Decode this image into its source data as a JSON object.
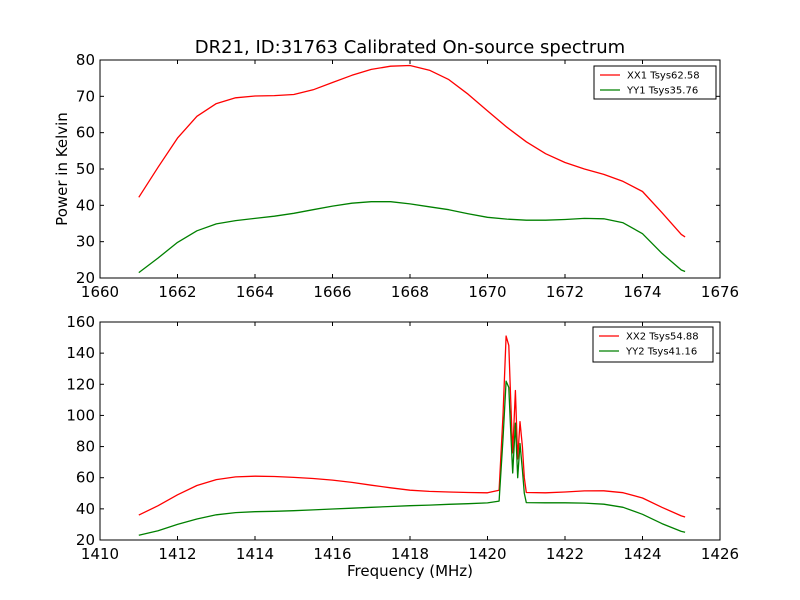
{
  "figure": {
    "title": "DR21, ID:31763 Calibrated On-source spectrum"
  },
  "chart_data": [
    {
      "type": "line",
      "title": "DR21, ID:31763 Calibrated On-source spectrum",
      "xlabel": "",
      "ylabel": "Power in Kelvin",
      "xlim": [
        1660,
        1676
      ],
      "ylim": [
        20,
        80
      ],
      "x_ticks": [
        "1660",
        "1662",
        "1664",
        "1666",
        "1668",
        "1670",
        "1672",
        "1674",
        "1676"
      ],
      "y_ticks": [
        "20",
        "30",
        "40",
        "50",
        "60",
        "70",
        "80"
      ],
      "grid": false,
      "legend_position": "top-right",
      "series": [
        {
          "name": "XX1 Tsys62.58",
          "color": "#ff0000",
          "points": [
            [
              1661.0,
              42.2
            ],
            [
              1661.5,
              50.5
            ],
            [
              1662.0,
              58.5
            ],
            [
              1662.5,
              64.5
            ],
            [
              1663.0,
              68.0
            ],
            [
              1663.5,
              69.6
            ],
            [
              1664.0,
              70.1
            ],
            [
              1664.5,
              70.2
            ],
            [
              1665.0,
              70.5
            ],
            [
              1665.5,
              71.8
            ],
            [
              1666.0,
              73.8
            ],
            [
              1666.5,
              75.8
            ],
            [
              1667.0,
              77.4
            ],
            [
              1667.5,
              78.3
            ],
            [
              1668.0,
              78.5
            ],
            [
              1668.5,
              77.2
            ],
            [
              1669.0,
              74.6
            ],
            [
              1669.5,
              70.6
            ],
            [
              1670.0,
              66.0
            ],
            [
              1670.5,
              61.5
            ],
            [
              1671.0,
              57.5
            ],
            [
              1671.5,
              54.2
            ],
            [
              1672.0,
              51.8
            ],
            [
              1672.5,
              50.0
            ],
            [
              1673.0,
              48.5
            ],
            [
              1673.5,
              46.6
            ],
            [
              1674.0,
              43.8
            ],
            [
              1674.5,
              38.0
            ],
            [
              1675.0,
              32.0
            ],
            [
              1675.1,
              31.3
            ]
          ]
        },
        {
          "name": "YY1 Tsys35.76",
          "color": "#008000",
          "points": [
            [
              1661.0,
              21.5
            ],
            [
              1661.5,
              25.5
            ],
            [
              1662.0,
              29.8
            ],
            [
              1662.5,
              33.0
            ],
            [
              1663.0,
              34.9
            ],
            [
              1663.5,
              35.8
            ],
            [
              1664.0,
              36.4
            ],
            [
              1664.5,
              37.0
            ],
            [
              1665.0,
              37.8
            ],
            [
              1665.5,
              38.8
            ],
            [
              1666.0,
              39.8
            ],
            [
              1666.5,
              40.6
            ],
            [
              1667.0,
              41.0
            ],
            [
              1667.5,
              41.0
            ],
            [
              1668.0,
              40.4
            ],
            [
              1668.5,
              39.6
            ],
            [
              1669.0,
              38.8
            ],
            [
              1669.5,
              37.7
            ],
            [
              1670.0,
              36.7
            ],
            [
              1670.5,
              36.2
            ],
            [
              1671.0,
              35.9
            ],
            [
              1671.5,
              35.9
            ],
            [
              1672.0,
              36.1
            ],
            [
              1672.5,
              36.4
            ],
            [
              1673.0,
              36.3
            ],
            [
              1673.5,
              35.2
            ],
            [
              1674.0,
              32.2
            ],
            [
              1674.5,
              26.8
            ],
            [
              1675.0,
              22.2
            ],
            [
              1675.1,
              21.8
            ]
          ]
        }
      ]
    },
    {
      "type": "line",
      "title": "",
      "xlabel": "Frequency (MHz)",
      "ylabel": "",
      "xlim": [
        1410,
        1426
      ],
      "ylim": [
        20,
        160
      ],
      "x_ticks": [
        "1410",
        "1412",
        "1414",
        "1416",
        "1418",
        "1420",
        "1422",
        "1424",
        "1426"
      ],
      "y_ticks": [
        "20",
        "40",
        "60",
        "80",
        "100",
        "120",
        "140",
        "160"
      ],
      "grid": false,
      "legend_position": "top-right",
      "series": [
        {
          "name": "XX2 Tsys54.88",
          "color": "#ff0000",
          "points": [
            [
              1411.0,
              36.0
            ],
            [
              1411.5,
              42.0
            ],
            [
              1412.0,
              49.0
            ],
            [
              1412.5,
              55.0
            ],
            [
              1413.0,
              58.8
            ],
            [
              1413.5,
              60.5
            ],
            [
              1414.0,
              61.0
            ],
            [
              1414.5,
              60.8
            ],
            [
              1415.0,
              60.2
            ],
            [
              1415.5,
              59.5
            ],
            [
              1416.0,
              58.5
            ],
            [
              1416.5,
              57.0
            ],
            [
              1417.0,
              55.2
            ],
            [
              1417.5,
              53.5
            ],
            [
              1418.0,
              52.0
            ],
            [
              1418.5,
              51.2
            ],
            [
              1419.0,
              50.8
            ],
            [
              1419.5,
              50.5
            ],
            [
              1420.0,
              50.3
            ],
            [
              1420.3,
              52.0
            ],
            [
              1420.4,
              100.0
            ],
            [
              1420.48,
              151.0
            ],
            [
              1420.55,
              145.0
            ],
            [
              1420.6,
              110.0
            ],
            [
              1420.65,
              76.0
            ],
            [
              1420.72,
              116.0
            ],
            [
              1420.78,
              72.0
            ],
            [
              1420.84,
              96.0
            ],
            [
              1420.9,
              80.0
            ],
            [
              1420.95,
              60.0
            ],
            [
              1421.0,
              50.5
            ],
            [
              1421.5,
              50.3
            ],
            [
              1422.0,
              50.8
            ],
            [
              1422.5,
              51.5
            ],
            [
              1423.0,
              51.6
            ],
            [
              1423.5,
              50.4
            ],
            [
              1424.0,
              47.0
            ],
            [
              1424.5,
              41.0
            ],
            [
              1425.0,
              35.5
            ],
            [
              1425.1,
              34.8
            ]
          ]
        },
        {
          "name": "YY2 Tsys41.16",
          "color": "#008000",
          "points": [
            [
              1411.0,
              23.0
            ],
            [
              1411.5,
              26.0
            ],
            [
              1412.0,
              30.0
            ],
            [
              1412.5,
              33.5
            ],
            [
              1413.0,
              36.2
            ],
            [
              1413.5,
              37.6
            ],
            [
              1414.0,
              38.2
            ],
            [
              1414.5,
              38.4
            ],
            [
              1415.0,
              38.8
            ],
            [
              1415.5,
              39.3
            ],
            [
              1416.0,
              39.9
            ],
            [
              1416.5,
              40.4
            ],
            [
              1417.0,
              41.0
            ],
            [
              1417.5,
              41.5
            ],
            [
              1418.0,
              42.0
            ],
            [
              1418.5,
              42.4
            ],
            [
              1419.0,
              42.9
            ],
            [
              1419.5,
              43.3
            ],
            [
              1420.0,
              43.8
            ],
            [
              1420.3,
              45.0
            ],
            [
              1420.4,
              85.0
            ],
            [
              1420.48,
              122.0
            ],
            [
              1420.55,
              118.0
            ],
            [
              1420.6,
              90.0
            ],
            [
              1420.65,
              63.0
            ],
            [
              1420.72,
              95.0
            ],
            [
              1420.78,
              60.0
            ],
            [
              1420.84,
              82.0
            ],
            [
              1420.9,
              65.0
            ],
            [
              1420.95,
              50.0
            ],
            [
              1421.0,
              44.0
            ],
            [
              1421.5,
              43.9
            ],
            [
              1422.0,
              43.9
            ],
            [
              1422.5,
              43.7
            ],
            [
              1423.0,
              43.0
            ],
            [
              1423.5,
              41.0
            ],
            [
              1424.0,
              36.5
            ],
            [
              1424.5,
              30.5
            ],
            [
              1425.0,
              25.5
            ],
            [
              1425.1,
              25.0
            ]
          ]
        }
      ]
    }
  ]
}
